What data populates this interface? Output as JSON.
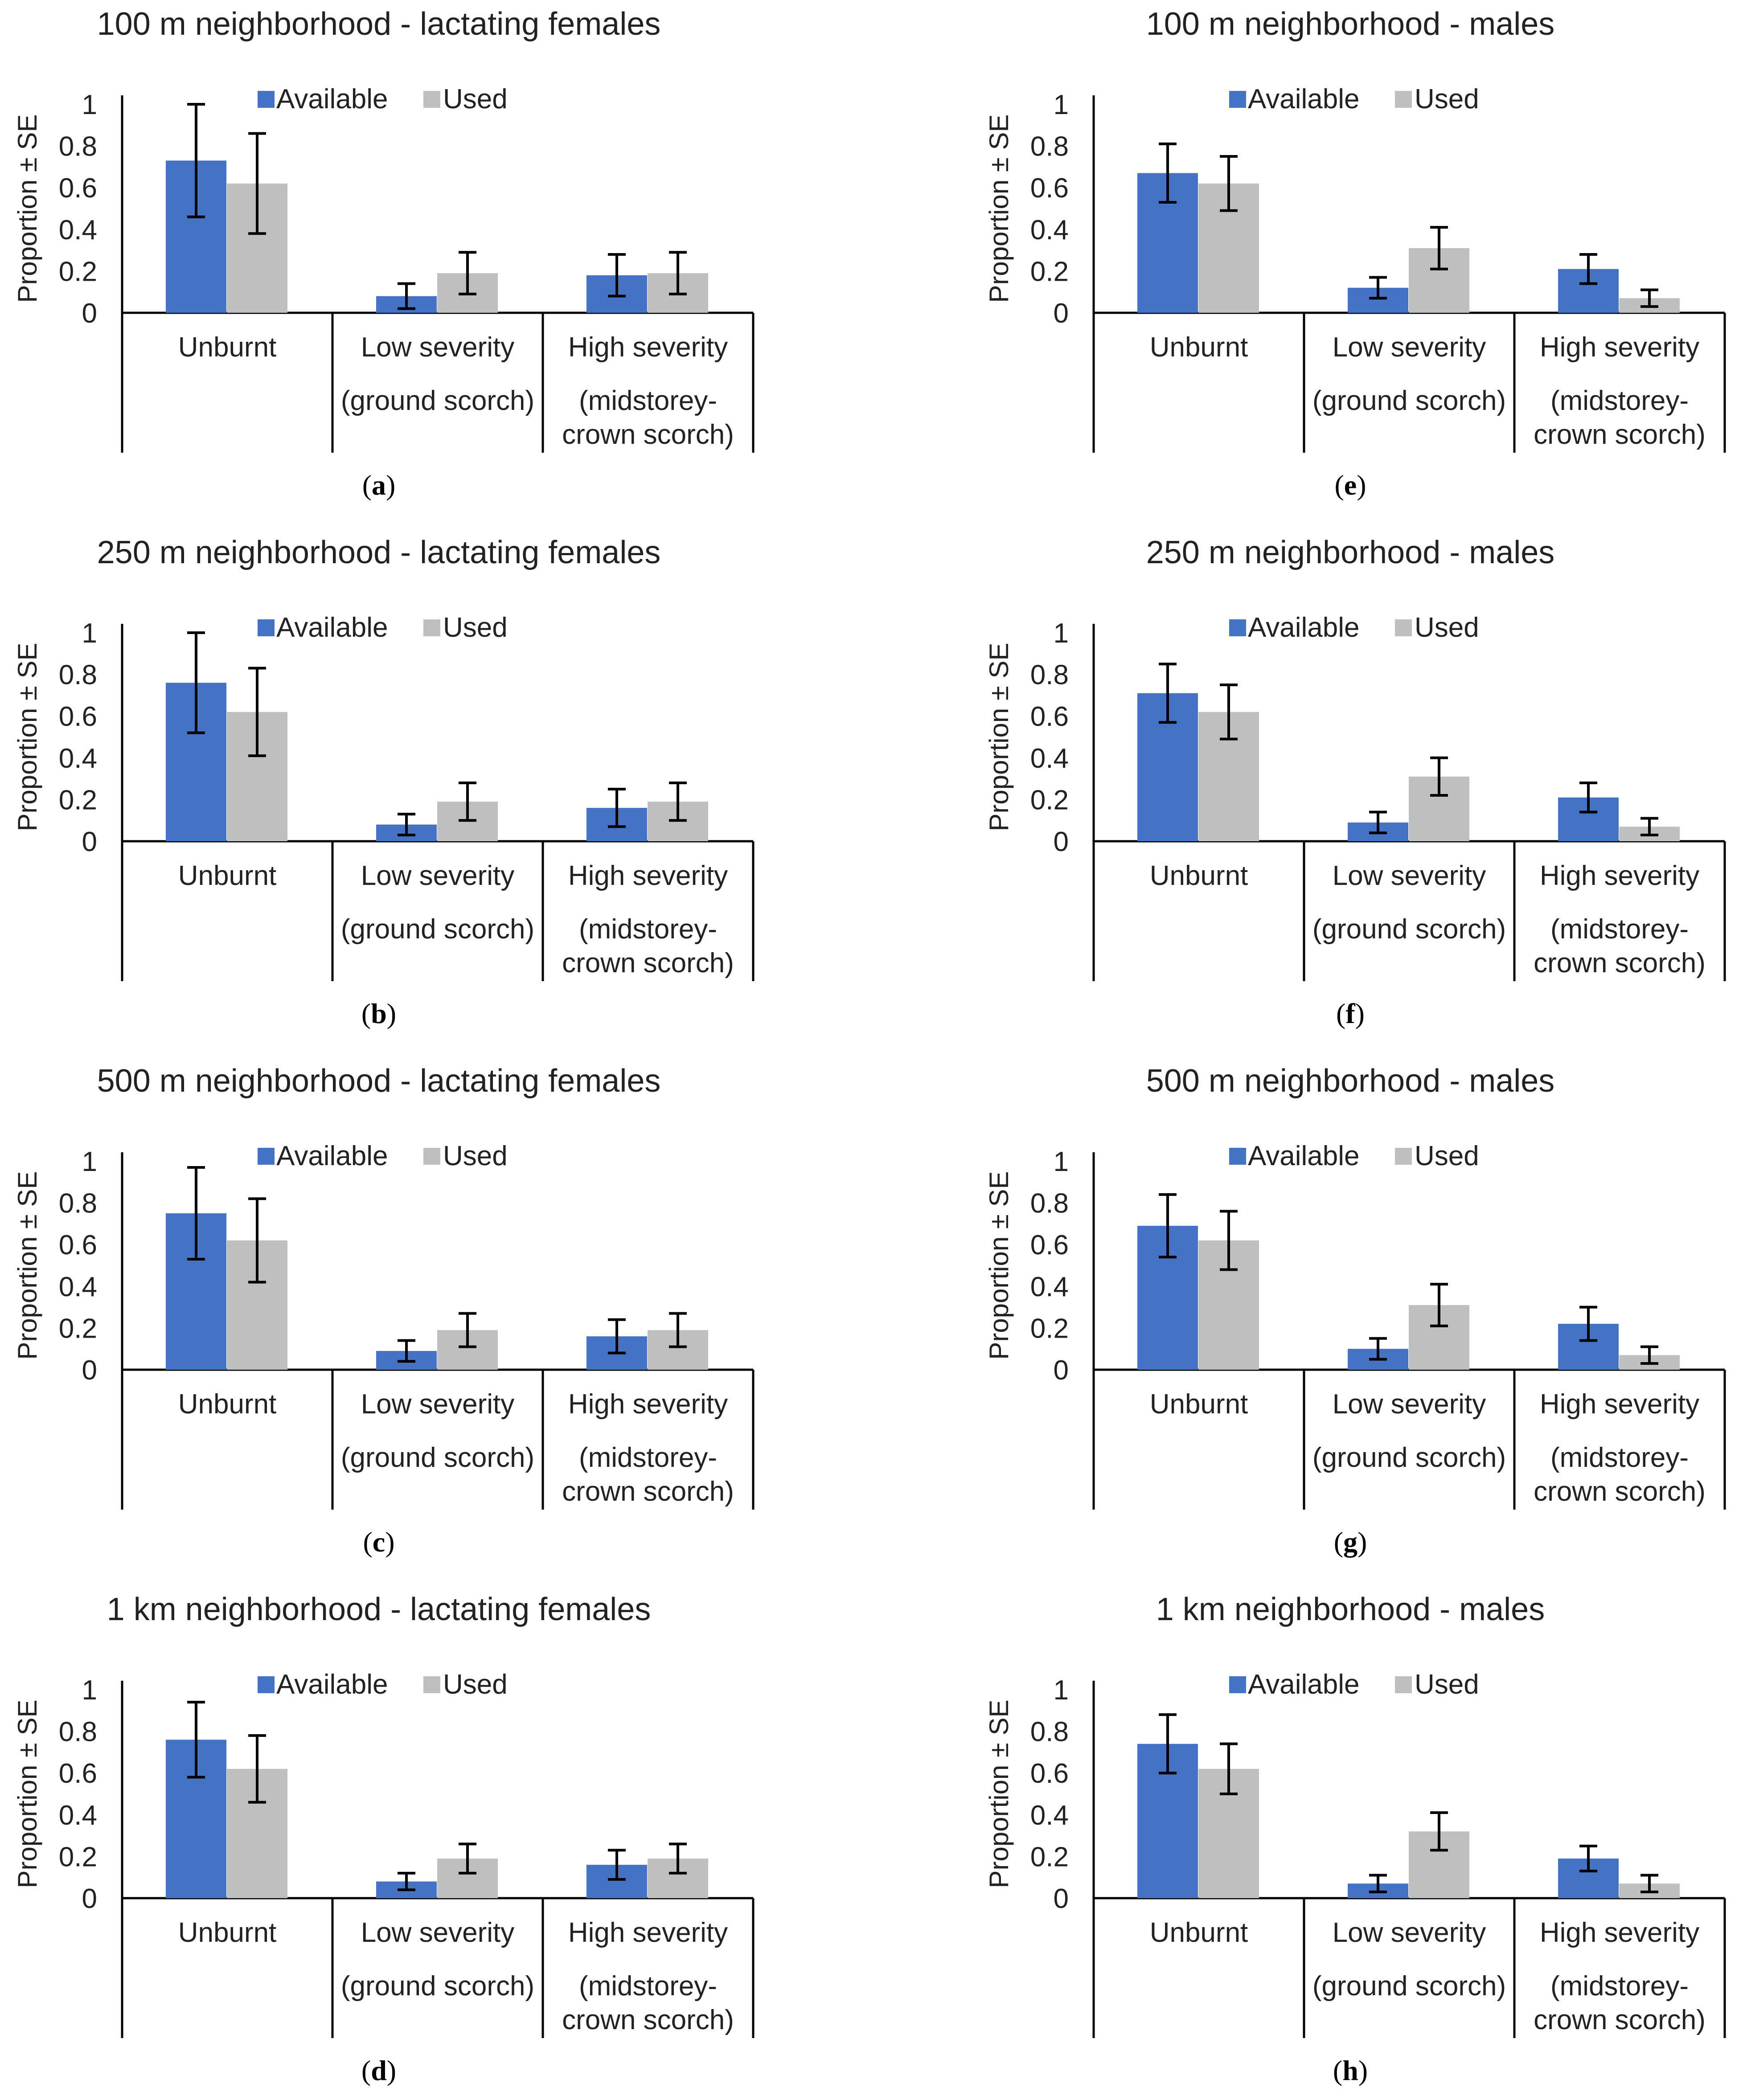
{
  "colors": {
    "available": "#4472C4",
    "used": "#BFBFBF",
    "axis": "#000000"
  },
  "chart_data": [
    {
      "id": "a",
      "panel_label": "a",
      "title": "100 m neighborhood - lactating females",
      "type": "bar",
      "ylabel": "Proportion ± SE",
      "ylim": [
        0,
        1
      ],
      "yticks": [
        "0",
        "0.2",
        "0.4",
        "0.6",
        "0.8",
        "1"
      ],
      "categories": [
        {
          "lines": [
            "Unburnt"
          ]
        },
        {
          "lines": [
            "Low severity",
            "(ground scorch)"
          ]
        },
        {
          "lines": [
            "High severity",
            "(midstorey-",
            "crown scorch)"
          ]
        }
      ],
      "series": [
        {
          "name": "Available",
          "values": [
            0.73,
            0.08,
            0.18
          ],
          "errors": [
            0.27,
            0.06,
            0.1
          ]
        },
        {
          "name": "Used",
          "values": [
            0.62,
            0.19,
            0.19
          ],
          "errors": [
            0.24,
            0.1,
            0.1
          ]
        }
      ],
      "legend": "top"
    },
    {
      "id": "b",
      "panel_label": "b",
      "title": "250 m neighborhood - lactating females",
      "type": "bar",
      "ylabel": "Proportion ± SE",
      "ylim": [
        0,
        1
      ],
      "yticks": [
        "0",
        "0.2",
        "0.4",
        "0.6",
        "0.8",
        "1"
      ],
      "categories": [
        {
          "lines": [
            "Unburnt"
          ]
        },
        {
          "lines": [
            "Low severity",
            "(ground scorch)"
          ]
        },
        {
          "lines": [
            "High severity",
            "(midstorey-",
            "crown scorch)"
          ]
        }
      ],
      "series": [
        {
          "name": "Available",
          "values": [
            0.76,
            0.08,
            0.16
          ],
          "errors": [
            0.24,
            0.05,
            0.09
          ]
        },
        {
          "name": "Used",
          "values": [
            0.62,
            0.19,
            0.19
          ],
          "errors": [
            0.21,
            0.09,
            0.09
          ]
        }
      ],
      "legend": "top"
    },
    {
      "id": "c",
      "panel_label": "c",
      "title": "500 m neighborhood - lactating females",
      "type": "bar",
      "ylabel": "Proportion ± SE",
      "ylim": [
        0,
        1
      ],
      "yticks": [
        "0",
        "0.2",
        "0.4",
        "0.6",
        "0.8",
        "1"
      ],
      "categories": [
        {
          "lines": [
            "Unburnt"
          ]
        },
        {
          "lines": [
            "Low severity",
            "(ground scorch)"
          ]
        },
        {
          "lines": [
            "High severity",
            "(midstorey-",
            "crown scorch)"
          ]
        }
      ],
      "series": [
        {
          "name": "Available",
          "values": [
            0.75,
            0.09,
            0.16
          ],
          "errors": [
            0.22,
            0.05,
            0.08
          ]
        },
        {
          "name": "Used",
          "values": [
            0.62,
            0.19,
            0.19
          ],
          "errors": [
            0.2,
            0.08,
            0.08
          ]
        }
      ],
      "legend": "top"
    },
    {
      "id": "d",
      "panel_label": "d",
      "title": "1 km neighborhood - lactating females",
      "type": "bar",
      "ylabel": "Proportion ± SE",
      "ylim": [
        0,
        1
      ],
      "yticks": [
        "0",
        "0.2",
        "0.4",
        "0.6",
        "0.8",
        "1"
      ],
      "categories": [
        {
          "lines": [
            "Unburnt"
          ]
        },
        {
          "lines": [
            "Low severity",
            "(ground scorch)"
          ]
        },
        {
          "lines": [
            "High severity",
            "(midstorey-",
            "crown scorch)"
          ]
        }
      ],
      "series": [
        {
          "name": "Available",
          "values": [
            0.76,
            0.08,
            0.16
          ],
          "errors": [
            0.18,
            0.04,
            0.07
          ]
        },
        {
          "name": "Used",
          "values": [
            0.62,
            0.19,
            0.19
          ],
          "errors": [
            0.16,
            0.07,
            0.07
          ]
        }
      ],
      "legend": "top"
    },
    {
      "id": "e",
      "panel_label": "e",
      "title": "100 m neighborhood - males",
      "type": "bar",
      "ylabel": "Proportion ± SE",
      "ylim": [
        0,
        1
      ],
      "yticks": [
        "0",
        "0.2",
        "0.4",
        "0.6",
        "0.8",
        "1"
      ],
      "categories": [
        {
          "lines": [
            "Unburnt"
          ]
        },
        {
          "lines": [
            "Low severity",
            "(ground scorch)"
          ]
        },
        {
          "lines": [
            "High severity",
            "(midstorey-",
            "crown scorch)"
          ]
        }
      ],
      "series": [
        {
          "name": "Available",
          "values": [
            0.67,
            0.12,
            0.21
          ],
          "errors": [
            0.14,
            0.05,
            0.07
          ]
        },
        {
          "name": "Used",
          "values": [
            0.62,
            0.31,
            0.07
          ],
          "errors": [
            0.13,
            0.1,
            0.04
          ]
        }
      ],
      "legend": "top"
    },
    {
      "id": "f",
      "panel_label": "f",
      "title": "250 m neighborhood - males",
      "type": "bar",
      "ylabel": "Proportion ± SE",
      "ylim": [
        0,
        1
      ],
      "yticks": [
        "0",
        "0.2",
        "0.4",
        "0.6",
        "0.8",
        "1"
      ],
      "categories": [
        {
          "lines": [
            "Unburnt"
          ]
        },
        {
          "lines": [
            "Low severity",
            "(ground scorch)"
          ]
        },
        {
          "lines": [
            "High severity",
            "(midstorey-",
            "crown scorch)"
          ]
        }
      ],
      "series": [
        {
          "name": "Available",
          "values": [
            0.71,
            0.09,
            0.21
          ],
          "errors": [
            0.14,
            0.05,
            0.07
          ]
        },
        {
          "name": "Used",
          "values": [
            0.62,
            0.31,
            0.07
          ],
          "errors": [
            0.13,
            0.09,
            0.04
          ]
        }
      ],
      "legend": "top"
    },
    {
      "id": "g",
      "panel_label": "g",
      "title": "500 m neighborhood - males",
      "type": "bar",
      "ylabel": "Proportion ± SE",
      "ylim": [
        0,
        1
      ],
      "yticks": [
        "0",
        "0.2",
        "0.4",
        "0.6",
        "0.8",
        "1"
      ],
      "categories": [
        {
          "lines": [
            "Unburnt"
          ]
        },
        {
          "lines": [
            "Low severity",
            "(ground scorch)"
          ]
        },
        {
          "lines": [
            "High severity",
            "(midstorey-",
            "crown scorch)"
          ]
        }
      ],
      "series": [
        {
          "name": "Available",
          "values": [
            0.69,
            0.1,
            0.22
          ],
          "errors": [
            0.15,
            0.05,
            0.08
          ]
        },
        {
          "name": "Used",
          "values": [
            0.62,
            0.31,
            0.07
          ],
          "errors": [
            0.14,
            0.1,
            0.04
          ]
        }
      ],
      "legend": "top"
    },
    {
      "id": "h",
      "panel_label": "h",
      "title": "1 km neighborhood - males",
      "type": "bar",
      "ylabel": "Proportion ± SE",
      "ylim": [
        0,
        1
      ],
      "yticks": [
        "0",
        "0.2",
        "0.4",
        "0.6",
        "0.8",
        "1"
      ],
      "categories": [
        {
          "lines": [
            "Unburnt"
          ]
        },
        {
          "lines": [
            "Low severity",
            "(ground scorch)"
          ]
        },
        {
          "lines": [
            "High severity",
            "(midstorey-",
            "crown scorch)"
          ]
        }
      ],
      "series": [
        {
          "name": "Available",
          "values": [
            0.74,
            0.07,
            0.19
          ],
          "errors": [
            0.14,
            0.04,
            0.06
          ]
        },
        {
          "name": "Used",
          "values": [
            0.62,
            0.32,
            0.07
          ],
          "errors": [
            0.12,
            0.09,
            0.04
          ]
        }
      ],
      "legend": "top"
    }
  ]
}
